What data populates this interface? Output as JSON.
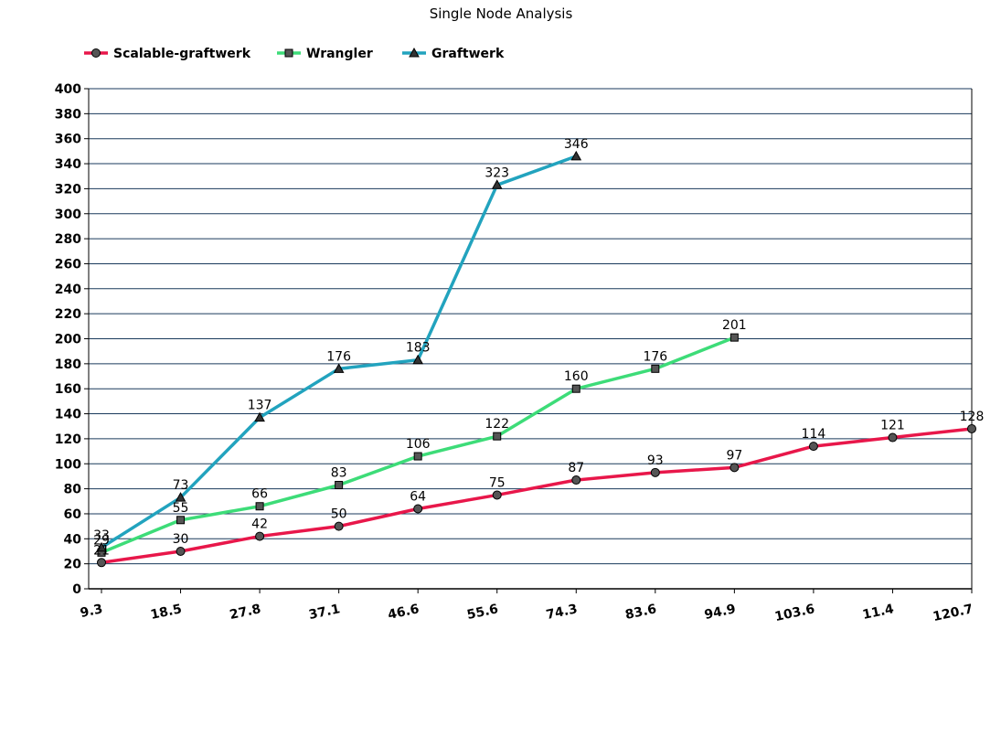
{
  "chart_data": {
    "type": "line",
    "title": "Single Node Analysis",
    "xlabel": "",
    "ylabel": "",
    "categories": [
      "9.3",
      "18.5",
      "27.8",
      "37.1",
      "46.6",
      "55.6",
      "74.3",
      "83.6",
      "94.9",
      "103.6",
      "11.4",
      "120.7"
    ],
    "ylim": [
      0,
      400
    ],
    "ytick_step": 20,
    "grid": true,
    "legend_position": "top-left",
    "series": [
      {
        "name": "Scalable-graftwerk",
        "color": "#e8174a",
        "marker": "circle",
        "values": [
          21,
          30,
          42,
          50,
          64,
          75,
          87,
          93,
          97,
          114,
          121,
          128
        ]
      },
      {
        "name": "Wrangler",
        "color": "#3ddc78",
        "marker": "square",
        "values": [
          29,
          55,
          66,
          83,
          106,
          122,
          160,
          176,
          201,
          null,
          null,
          null
        ]
      },
      {
        "name": "Graftwerk",
        "color": "#22a3be",
        "marker": "triangle",
        "values": [
          33,
          73,
          137,
          176,
          183,
          323,
          346,
          null,
          null,
          null,
          null,
          null
        ]
      }
    ]
  }
}
